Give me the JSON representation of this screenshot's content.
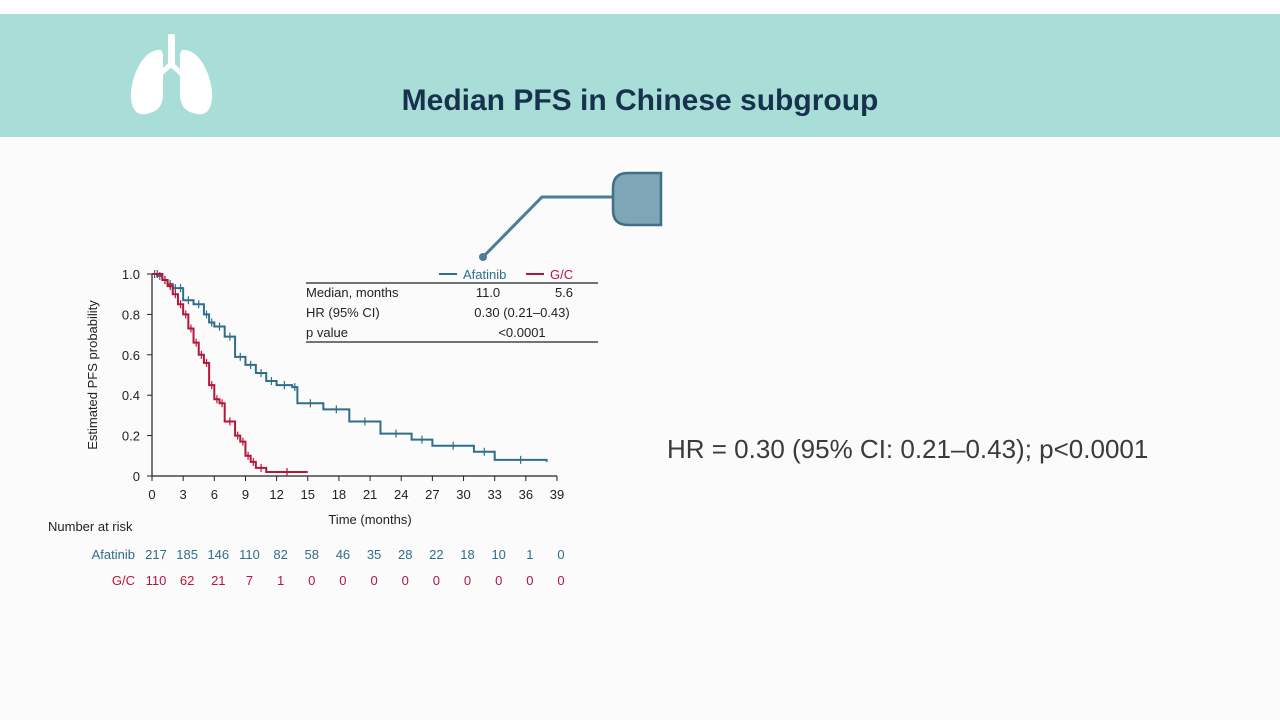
{
  "header": {
    "title": "Median PFS in Chinese subgroup",
    "icon": "lungs-icon",
    "background": "#a9ddd8"
  },
  "summary_text": "HR = 0.30 (95% CI: 0.21–0.43); p<0.0001",
  "colors": {
    "afatinib": "#2f6e8a",
    "gc": "#b4163b",
    "title": "#17324d"
  },
  "table": {
    "rows": [
      {
        "label": "Median, months",
        "afatinib": "11.0",
        "gc": "5.6"
      },
      {
        "label": "HR (95% CI)",
        "value": "0.30 (0.21–0.43)"
      },
      {
        "label": "p value",
        "value": "<0.0001"
      }
    ]
  },
  "risk_table": {
    "title": "Number at risk",
    "rows": [
      {
        "name": "Afatinib",
        "values": [
          "217",
          "185",
          "146",
          "110",
          "82",
          "58",
          "46",
          "35",
          "28",
          "22",
          "18",
          "10",
          "1",
          "0"
        ]
      },
      {
        "name": "G/C",
        "values": [
          "110",
          "62",
          "21",
          "7",
          "1",
          "0",
          "0",
          "0",
          "0",
          "0",
          "0",
          "0",
          "0",
          "0"
        ]
      }
    ]
  },
  "chart_data": {
    "type": "line",
    "xlabel": "Time (months)",
    "ylabel": "Estimated PFS probability",
    "xlim": [
      0,
      39
    ],
    "ylim": [
      0,
      1.0
    ],
    "xticks": [
      "0",
      "3",
      "6",
      "9",
      "12",
      "15",
      "18",
      "21",
      "24",
      "27",
      "30",
      "33",
      "36",
      "39"
    ],
    "yticks": [
      "0",
      "0.2",
      "0.4",
      "0.6",
      "0.8",
      "1.0"
    ],
    "legend_position": "top-right",
    "series": [
      {
        "name": "Afatinib",
        "color": "#2f6e8a",
        "x": [
          0,
          0.5,
          1.0,
          1.5,
          2.0,
          2.5,
          3.0,
          4.0,
          5.0,
          5.5,
          6.0,
          7.0,
          8.0,
          9.0,
          10.0,
          11.0,
          12.0,
          13.5,
          14.0,
          16.5,
          19.0,
          22.0,
          25.0,
          27.0,
          31.0,
          33.0,
          38.0
        ],
        "y": [
          1.0,
          0.99,
          0.97,
          0.95,
          0.93,
          0.93,
          0.87,
          0.85,
          0.8,
          0.76,
          0.74,
          0.69,
          0.59,
          0.55,
          0.51,
          0.47,
          0.45,
          0.44,
          0.36,
          0.33,
          0.27,
          0.21,
          0.18,
          0.15,
          0.12,
          0.08,
          0.07
        ]
      },
      {
        "name": "G/C",
        "color": "#b4163b",
        "x": [
          0,
          1.0,
          1.5,
          2.0,
          2.5,
          3.0,
          3.5,
          4.0,
          4.5,
          5.0,
          5.5,
          6.0,
          6.5,
          7.0,
          8.0,
          8.5,
          9.0,
          9.5,
          10.0,
          11.0,
          15.0
        ],
        "y": [
          1.0,
          0.97,
          0.94,
          0.9,
          0.85,
          0.8,
          0.73,
          0.66,
          0.6,
          0.56,
          0.45,
          0.38,
          0.36,
          0.27,
          0.2,
          0.17,
          0.1,
          0.07,
          0.04,
          0.02,
          0.02
        ]
      }
    ]
  }
}
